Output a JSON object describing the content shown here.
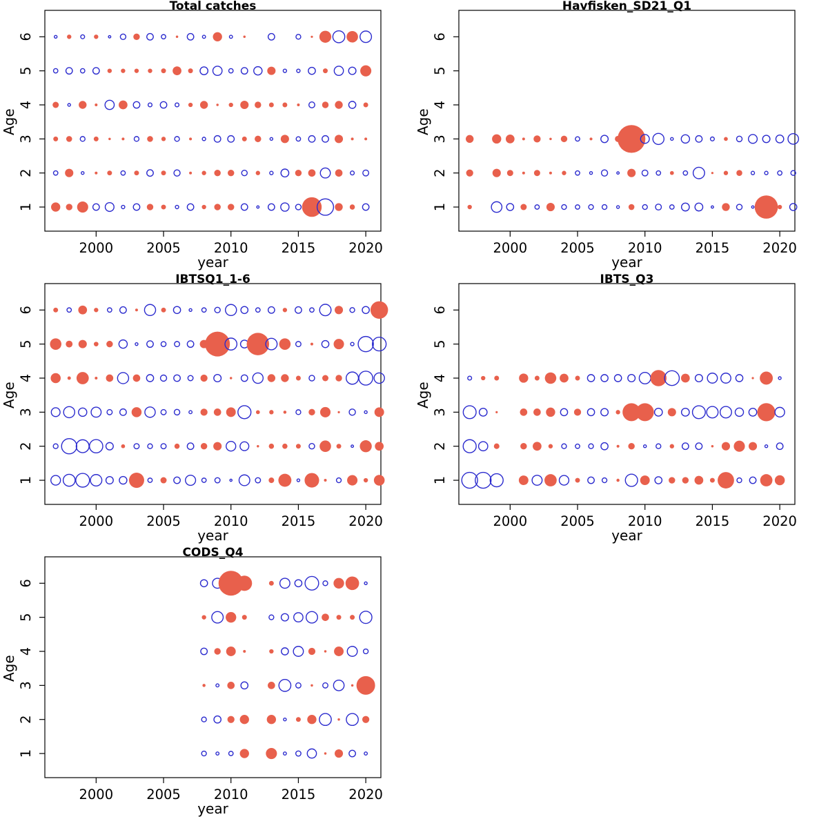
{
  "figure": {
    "background": "#ffffff",
    "colors": {
      "positive_fill": "#e8604c",
      "negative_stroke": "#2b2bce",
      "axis": "#000000",
      "text": "#000000"
    }
  },
  "axes_shared": {
    "x_label": "year",
    "y_label": "Age",
    "x_ticks": [
      2000,
      2005,
      2010,
      2015,
      2020
    ],
    "y_ticks": [
      1,
      2,
      3,
      4,
      5,
      6
    ],
    "x_range": [
      1996.2,
      2021.9
    ],
    "sign_encoding": {
      "positive": "filled red circle",
      "negative": "open blue circle"
    },
    "size_encoding": "circle radius proportional to sqrt(|value|)"
  },
  "chart_data": [
    {
      "type": "bubble",
      "title": "Total catches",
      "xlabel": "year",
      "ylabel": "Age",
      "years": [
        1997,
        1998,
        1999,
        2000,
        2001,
        2002,
        2003,
        2004,
        2005,
        2006,
        2007,
        2008,
        2009,
        2010,
        2011,
        2012,
        2013,
        2014,
        2015,
        2016,
        2017,
        2018,
        2019,
        2020
      ],
      "series": [
        {
          "age": 6,
          "values": [
            -0.2,
            0.5,
            -0.4,
            0.5,
            -0.15,
            -0.8,
            1.1,
            -1.1,
            -0.5,
            0.15,
            -1.1,
            -0.25,
            2.2,
            -0.25,
            0.15,
            null,
            -1.1,
            null,
            -0.6,
            0.1,
            3.7,
            -3.7,
            3.4,
            -3.4
          ]
        },
        {
          "age": 5,
          "values": [
            -0.5,
            -1.1,
            -0.5,
            -1.1,
            0.5,
            0.5,
            0.5,
            0.5,
            0.6,
            2.0,
            0.6,
            -1.6,
            -2.2,
            -0.5,
            -1.1,
            -1.8,
            1.8,
            -0.3,
            -0.3,
            -1.3,
            0.6,
            -2.2,
            -1.4,
            3.2
          ]
        },
        {
          "age": 4,
          "values": [
            1.0,
            -0.2,
            1.6,
            0.2,
            -2.2,
            2.0,
            -1.1,
            -0.4,
            -1.1,
            -0.4,
            0.5,
            1.6,
            0.15,
            0.5,
            1.8,
            1.1,
            0.6,
            0.6,
            0.2,
            -0.9,
            1.1,
            1.6,
            -1.3,
            0.6
          ]
        },
        {
          "age": 3,
          "values": [
            0.6,
            0.9,
            -0.6,
            0.6,
            0.15,
            0.2,
            -0.6,
            0.9,
            0.5,
            -0.6,
            0.2,
            -0.3,
            -1.1,
            -1.1,
            0.6,
            1.1,
            -0.2,
            1.8,
            -0.5,
            -1.1,
            -1.1,
            1.8,
            0.2,
            0.2
          ]
        },
        {
          "age": 2,
          "values": [
            -0.5,
            1.8,
            -0.2,
            0.2,
            0.6,
            -0.5,
            0.6,
            -1.1,
            0.6,
            -1.0,
            0.2,
            0.5,
            1.1,
            1.1,
            -0.8,
            0.5,
            -0.3,
            -1.6,
            1.1,
            1.4,
            -2.6,
            1.4,
            -0.4,
            -0.9
          ]
        },
        {
          "age": 1,
          "values": [
            2.2,
            1.1,
            3.2,
            -1.1,
            -2.0,
            -0.3,
            -1.1,
            1.1,
            0.6,
            -0.3,
            -1.1,
            0.5,
            1.1,
            1.1,
            -1.1,
            -0.15,
            -1.1,
            -1.8,
            -0.8,
            10,
            -7,
            1.6,
            0.7,
            -1.1
          ]
        }
      ]
    },
    {
      "type": "bubble",
      "title": "Havfisken_SD21_Q1",
      "xlabel": "year",
      "ylabel": "Age",
      "years": [
        1997,
        1998,
        1999,
        2000,
        2001,
        2002,
        2003,
        2004,
        2005,
        2006,
        2007,
        2008,
        2009,
        2010,
        2011,
        2012,
        2013,
        2014,
        2015,
        2016,
        2017,
        2018,
        2019,
        2020,
        2021
      ],
      "series": [
        {
          "age": 3,
          "values": [
            1.6,
            null,
            2.2,
            2.0,
            0.2,
            1.3,
            0.15,
            1.1,
            -0.5,
            0.2,
            -1.4,
            1.0,
            20,
            -2.0,
            -3.2,
            -0.2,
            -1.8,
            -1.1,
            -0.4,
            0.4,
            -0.8,
            -2.0,
            -1.4,
            -1.6,
            -2.9
          ]
        },
        {
          "age": 2,
          "values": [
            1.3,
            null,
            1.8,
            1.0,
            0.2,
            1.0,
            0.2,
            0.5,
            -0.5,
            -0.2,
            -1.0,
            -0.15,
            1.8,
            -0.9,
            -0.5,
            0.4,
            -0.5,
            -3.4,
            0.1,
            0.5,
            0.9,
            -0.3,
            -0.3,
            -0.5,
            -0.6
          ]
        },
        {
          "age": 1,
          "values": [
            0.5,
            null,
            -2.9,
            -1.3,
            1.0,
            -0.5,
            1.8,
            -0.6,
            -0.5,
            -0.6,
            -0.6,
            -0.2,
            0.9,
            -0.6,
            -0.9,
            -0.5,
            -1.6,
            -1.6,
            -0.15,
            1.6,
            -0.8,
            -0.15,
            14,
            0.5,
            -1.3
          ]
        }
      ]
    },
    {
      "type": "bubble",
      "title": "IBTSQ1_1-6",
      "xlabel": "year",
      "ylabel": "Age",
      "years": [
        1997,
        1998,
        1999,
        2000,
        2001,
        2002,
        2003,
        2004,
        2005,
        2006,
        2007,
        2008,
        2009,
        2010,
        2011,
        2012,
        2013,
        2014,
        2015,
        2016,
        2017,
        2018,
        2019,
        2020,
        2021
      ],
      "series": [
        {
          "age": 6,
          "values": [
            0.6,
            -0.5,
            2.0,
            0.5,
            -0.5,
            -1.1,
            0.2,
            -3.2,
            0.6,
            -1.3,
            -0.2,
            -0.5,
            -0.8,
            -3.2,
            -1.3,
            -0.5,
            -1.1,
            0.5,
            -1.1,
            -0.5,
            -3.4,
            1.8,
            -0.6,
            -1.3,
            8
          ]
        },
        {
          "age": 5,
          "values": [
            3.4,
            1.2,
            1.8,
            0.55,
            1.1,
            -1.8,
            -0.2,
            -1.1,
            -0.65,
            -0.7,
            -1.1,
            1.8,
            16,
            -3.7,
            -1.6,
            13,
            -3.4,
            3.4,
            -0.7,
            0.2,
            -1.3,
            2.8,
            -0.3,
            -6,
            -4.9
          ]
        },
        {
          "age": 4,
          "values": [
            2.6,
            0.3,
            3.9,
            0.2,
            1.4,
            -3.2,
            1.4,
            -1.3,
            -1.0,
            -1.1,
            -0.7,
            1.3,
            -1.4,
            0.15,
            -1.1,
            -2.8,
            1.6,
            1.6,
            0.6,
            -0.8,
            1.0,
            1.1,
            -3.9,
            -5,
            -2.8
          ]
        },
        {
          "age": 3,
          "values": [
            -2.0,
            -3.2,
            -1.8,
            -2.6,
            -0.7,
            -1.1,
            2.6,
            -2.8,
            -0.7,
            -0.8,
            -0.25,
            1.3,
            1.4,
            2.4,
            -4.4,
            0.4,
            0.5,
            0.25,
            -0.6,
            1.1,
            2.8,
            0.1,
            -1.0,
            -0.2,
            2.4
          ]
        },
        {
          "age": 2,
          "values": [
            -0.6,
            -6,
            -4.3,
            -4.6,
            -1.4,
            0.4,
            -0.7,
            -0.6,
            -0.7,
            0.7,
            -1.1,
            1.1,
            1.8,
            -2.4,
            -2.0,
            0.15,
            0.7,
            0.7,
            0.6,
            -0.8,
            3.4,
            0.6,
            -0.15,
            3.7,
            2.0
          ]
        },
        {
          "age": 1,
          "values": [
            -2.4,
            -3.7,
            -4.9,
            -3.4,
            -1.4,
            -1.5,
            6,
            -0.5,
            1.0,
            -1.1,
            -2.7,
            -0.5,
            -0.7,
            -0.05,
            -3.0,
            -0.7,
            0.8,
            4.4,
            -0.2,
            5.5,
            0.2,
            -0.6,
            2.8,
            0.5,
            3.0
          ]
        }
      ]
    },
    {
      "type": "bubble",
      "title": "IBTS_Q3",
      "xlabel": "year",
      "ylabel": "Age",
      "years": [
        1997,
        1998,
        1999,
        2000,
        2001,
        2002,
        2003,
        2004,
        2005,
        2006,
        2007,
        2008,
        2009,
        2010,
        2011,
        2012,
        2013,
        2014,
        2015,
        2016,
        2017,
        2018,
        2019,
        2020
      ],
      "series": [
        {
          "age": 4,
          "values": [
            -0.4,
            0.5,
            0.6,
            null,
            2.2,
            0.6,
            3.4,
            2.0,
            0.6,
            -1.3,
            -1.3,
            -1.3,
            -1.4,
            -3.4,
            6.8,
            -5.6,
            2.0,
            -1.4,
            -2.6,
            -2.6,
            -1.3,
            0.1,
            4.4,
            -0.2
          ]
        },
        {
          "age": 3,
          "values": [
            -4.3,
            -1.6,
            0.1,
            null,
            1.4,
            1.4,
            2.2,
            -1.3,
            1.3,
            -1.3,
            -1.4,
            0.5,
            8.3,
            8.3,
            -1.6,
            1.8,
            -1.6,
            -4.3,
            -3.4,
            -3.4,
            -1.8,
            -1.6,
            8.5,
            -2.4
          ]
        },
        {
          "age": 2,
          "values": [
            -4.4,
            -2.2,
            0.8,
            null,
            1.1,
            2.0,
            0.5,
            -0.6,
            -0.5,
            -0.6,
            -1.3,
            0.2,
            1.1,
            -0.2,
            -0.6,
            0.5,
            -1.1,
            -1.1,
            0.15,
            1.8,
            3.2,
            1.8,
            -0.2,
            -1.1
          ]
        },
        {
          "age": 1,
          "values": [
            -6.5,
            -6.5,
            -4.4,
            null,
            2.4,
            -2.6,
            3.9,
            -2.4,
            0.6,
            -1.1,
            -0.6,
            0.25,
            -3.9,
            2.4,
            -1.3,
            1.1,
            1.1,
            2.0,
            0.6,
            7,
            -0.6,
            -1.1,
            3.9,
            2.6
          ]
        }
      ]
    },
    {
      "type": "bubble",
      "title": "CODS_Q4",
      "xlabel": "year",
      "ylabel": "Age",
      "years": [
        2008,
        2009,
        2010,
        2011,
        2012,
        2013,
        2014,
        2015,
        2016,
        2017,
        2018,
        2019,
        2020
      ],
      "series": [
        {
          "age": 6,
          "values": [
            -1.3,
            -2.6,
            16,
            6,
            null,
            0.6,
            -2.6,
            -1.3,
            -4.8,
            -0.6,
            2.9,
            4.8,
            -0.2
          ]
        },
        {
          "age": 5,
          "values": [
            0.5,
            -3.4,
            2.9,
            0.6,
            null,
            -0.6,
            -1.4,
            -2.2,
            -3.4,
            1.4,
            0.6,
            0.6,
            -3.9
          ]
        },
        {
          "age": 4,
          "values": [
            -1.1,
            1.1,
            2.4,
            0.2,
            null,
            0.5,
            -1.3,
            -2.6,
            1.3,
            0.15,
            2.4,
            -2.6,
            -0.6
          ]
        },
        {
          "age": 3,
          "values": [
            0.25,
            -0.25,
            1.4,
            -1.3,
            null,
            1.4,
            -3.7,
            -0.7,
            0.15,
            -0.7,
            -2.9,
            0.15,
            9
          ]
        },
        {
          "age": 2,
          "values": [
            -0.6,
            -1.3,
            1.3,
            2.2,
            null,
            2.2,
            -0.2,
            0.6,
            2.2,
            -3.7,
            0.15,
            -3.7,
            1.3
          ]
        },
        {
          "age": 1,
          "values": [
            -0.6,
            -0.25,
            -0.5,
            2.2,
            null,
            3.2,
            -0.25,
            -0.7,
            -2.2,
            0.15,
            1.8,
            -1.1,
            -0.25
          ]
        }
      ]
    }
  ]
}
